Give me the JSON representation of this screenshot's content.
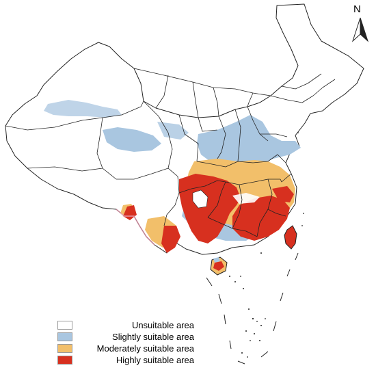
{
  "north_arrow": {
    "label": "N",
    "icon": "north-arrow-icon"
  },
  "legend": {
    "items": [
      {
        "label": "Unsuitable area",
        "color": "#ffffff"
      },
      {
        "label": "Slightly suitable area",
        "color": "#a9c6e0"
      },
      {
        "label": "Moderately suitable area",
        "color": "#f2bf6a"
      },
      {
        "label": "Highly suitable area",
        "color": "#d7301f"
      }
    ]
  },
  "colors": {
    "border": "#222222",
    "unsuitable": "#ffffff",
    "slightly": "#a9c6e0",
    "moderately": "#f2bf6a",
    "highly": "#d7301f",
    "fringe": "#e8a0b4"
  }
}
